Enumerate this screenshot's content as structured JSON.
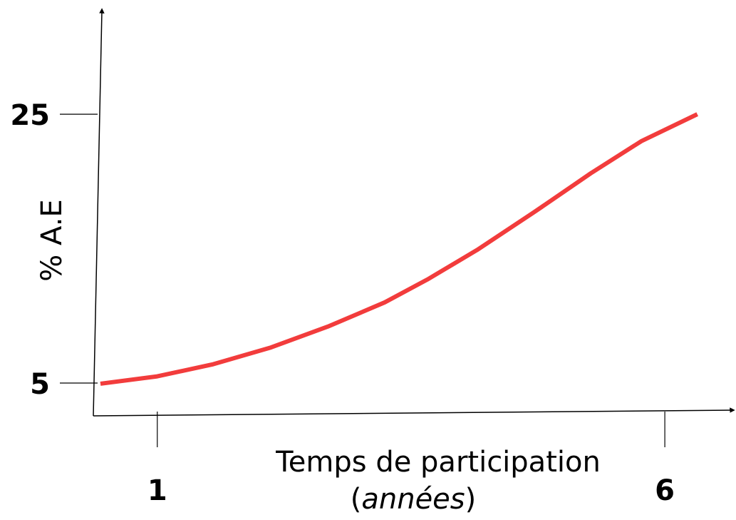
{
  "chart_data": {
    "type": "line",
    "y_label": "% A.E",
    "x_label": "Temps de participation",
    "x_label_unit": "(années)",
    "x": [
      0.44,
      1,
      1.55,
      2.12,
      2.68,
      3.24,
      3.66,
      4.15,
      4.71,
      5.27,
      5.77,
      6.32
    ],
    "series": [
      {
        "color": "#f23c3c",
        "values": [
          4.95,
          5.5,
          6.4,
          7.65,
          9.2,
          11.0,
          12.7,
          14.9,
          17.7,
          20.6,
          23.0,
          25.0
        ]
      }
    ],
    "xlim": [
      0.37,
      6.61
    ],
    "xticks": [
      1,
      6
    ],
    "ylim": [
      2.56,
      32.7
    ],
    "yticks": [
      5,
      25
    ]
  }
}
